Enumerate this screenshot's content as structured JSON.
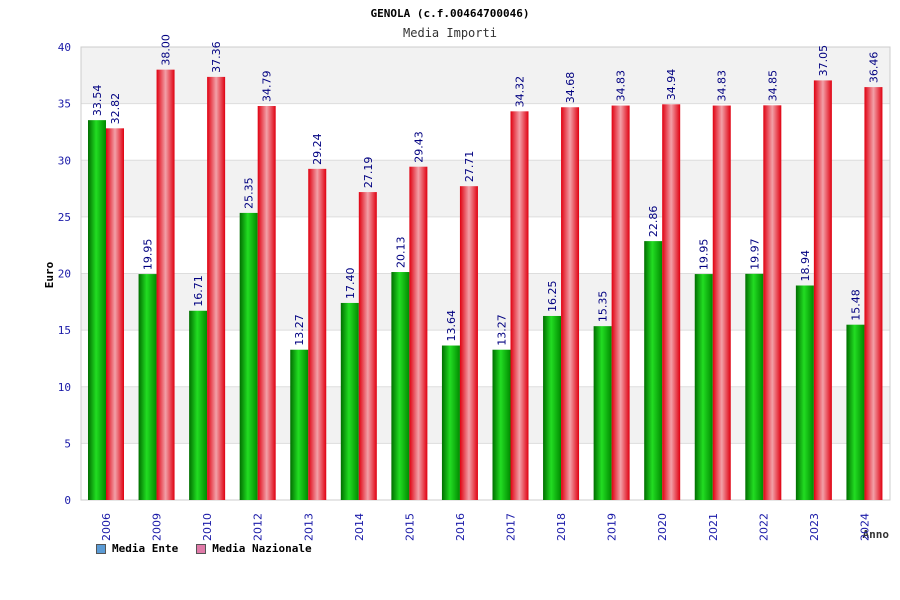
{
  "chart_data": {
    "type": "bar",
    "title": "GENOLA (c.f.00464700046)",
    "subtitle": "Media Importi",
    "xlabel": "Anno",
    "ylabel": "Euro",
    "ylim": [
      0,
      40
    ],
    "yticks": [
      0,
      5,
      10,
      15,
      20,
      25,
      30,
      35,
      40
    ],
    "categories": [
      "2006",
      "2009",
      "2010",
      "2012",
      "2013",
      "2014",
      "2015",
      "2016",
      "2017",
      "2018",
      "2019",
      "2020",
      "2021",
      "2022",
      "2023",
      "2024"
    ],
    "series": [
      {
        "name": "Media Ente",
        "color": "#0ec80e",
        "values": [
          33.54,
          19.95,
          16.71,
          25.35,
          13.27,
          17.4,
          20.13,
          13.64,
          13.27,
          16.25,
          15.35,
          22.86,
          19.95,
          19.97,
          18.94,
          15.48
        ]
      },
      {
        "name": "Media Nazionale",
        "color": "#f0303a",
        "values": [
          32.82,
          38.0,
          37.36,
          34.79,
          29.24,
          27.19,
          29.43,
          27.71,
          34.32,
          34.68,
          34.83,
          34.94,
          34.83,
          34.85,
          37.05,
          36.46
        ]
      }
    ],
    "data_labels": [
      [
        "33.54",
        "19.95",
        "16.71",
        "25.35",
        "13.27",
        "17.40",
        "20.13",
        "13.64",
        "13.27",
        "16.25",
        "15.35",
        "22.86",
        "19.95",
        "19.97",
        "18.94",
        "15.48"
      ],
      [
        "32.82",
        "38.00",
        "37.36",
        "34.79",
        "29.24",
        "27.19",
        "29.43",
        "27.71",
        "34.32",
        "34.68",
        "34.83",
        "34.94",
        "34.83",
        "34.85",
        "37.05",
        "36.46"
      ]
    ],
    "legend": [
      {
        "label": "Media Ente",
        "color": "#5b9bd5"
      },
      {
        "label": "Media Nazionale",
        "color": "#e07aa8"
      }
    ],
    "grid": true,
    "legend_position": "bottom-left"
  }
}
